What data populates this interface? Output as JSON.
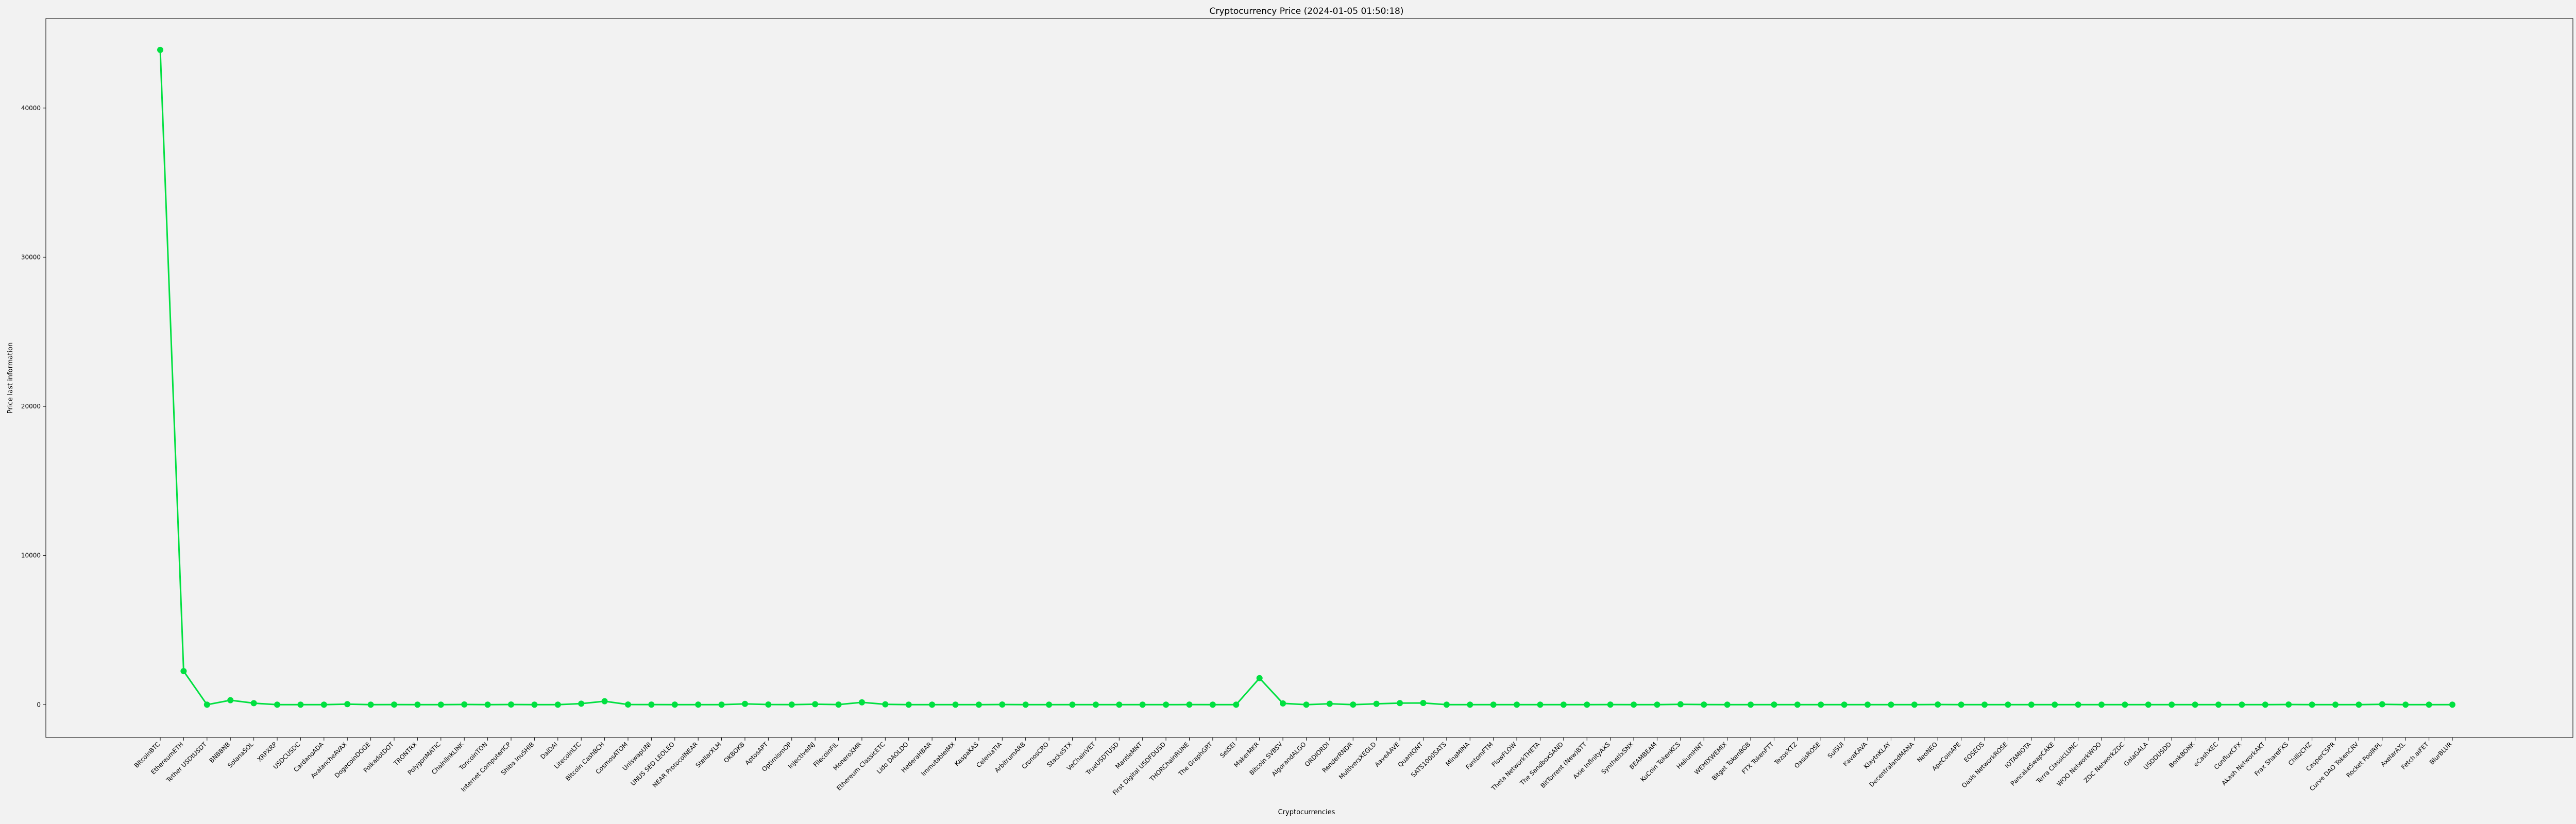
{
  "chart_data": {
    "type": "line",
    "title": "Cryptocurrency Price (2024-01-05 01:50:18)",
    "xlabel": "Cryptocurrencies",
    "ylabel": "Price last information",
    "ylim": [
      -2200,
      46000
    ],
    "yticks": [
      0,
      10000,
      20000,
      30000,
      40000
    ],
    "color": "#00e040",
    "grid": false,
    "legend": "none",
    "categories": [
      "BitcoinBTC",
      "EthereumETH",
      "Tether USDtUSDT",
      "BNBBNB",
      "SolanaSOL",
      "XRPXRP",
      "USDCUSDC",
      "CardanoADA",
      "AvalancheAVAX",
      "DogecoinDOGE",
      "PolkadotDOT",
      "TRONTRX",
      "PolygonMATIC",
      "ChainlinkLINK",
      "ToncoinTON",
      "Internet ComputerICP",
      "Shiba InuSHIB",
      "DaiDAI",
      "LitecoinLTC",
      "Bitcoin CashBCH",
      "CosmosATOM",
      "UniswapUNI",
      "UNUS SED LEOLEO",
      "NEAR ProtocolNEAR",
      "StellarXLM",
      "OKBOKB",
      "AptosAPT",
      "OptimismOP",
      "InjectiveINJ",
      "FilecoinFIL",
      "MoneroXMR",
      "Ethereum ClassicETC",
      "Lido DAOLDO",
      "HederaHBAR",
      "ImmutableIMX",
      "KaspaKAS",
      "CeleniaTIA",
      "ArbitrumARB",
      "CronosCRO",
      "StacksSTX",
      "VeChainVET",
      "TrueUSDTUSD",
      "MantleMNT",
      "First Digital USDFDUSD",
      "THORChainRUNE",
      "The GraphGRT",
      "SeiSEI",
      "MakerMKR",
      "Bitcoin SVBSV",
      "AlgorandALGO",
      "ORDIORDI",
      "RenderRNDR",
      "MultiversXEGLD",
      "AaveAAVE",
      "QuantQNT",
      "SATS1000SATS",
      "MinaMINA",
      "FantomFTM",
      "FlowFLOW",
      "Theta NetworkTHETA",
      "The SandboxSAND",
      "BitTorrent (New)BTT",
      "Axie InfinityAXS",
      "SynthetixSNX",
      "BEAMBEAM",
      "KuCoin TokenKCS",
      "HeliumHNT",
      "WEMIXWEMIX",
      "Bitget TokenBGB",
      "FTX TokenFTT",
      "TezosXTZ",
      "OasisROSE",
      "SuiSUI",
      "KavaKAVA",
      "KlaytnKLAY",
      "DecentralandMANA",
      "NeoNEO",
      "ApeCoinAPE",
      "EOSEOS",
      "Oasis NetworkROSE",
      "IOTAMIOTA",
      "PancakeSwapCAKE",
      "Terra ClassicLUNC",
      "WOO NetworkWOO",
      "ZDC NetworkZDC",
      "GalaGALA",
      "USDDUSDD",
      "BonkBONK",
      "eCashXEC",
      "ConfluxCFX",
      "Akash NetworkAKT",
      "Frax ShareFXS",
      "ChilizCHZ",
      "CasperCSPR",
      "Curve DAO TokenCRV",
      "Rocket PoolRPL",
      "AxelarAXL",
      "Fetch.aiFET",
      "BlurBLUR"
    ],
    "values": [
      43900,
      2250,
      1,
      300,
      100,
      0.6,
      1,
      0.5,
      35,
      0.08,
      7,
      0.1,
      0.8,
      14,
      2.2,
      11,
      1e-05,
      1,
      68,
      230,
      9.5,
      6,
      3.8,
      3.3,
      0.12,
      55,
      9,
      3.5,
      30,
      5.5,
      155,
      24,
      2.9,
      0.08,
      2,
      0.1,
      11,
      1.7,
      0.09,
      1.5,
      0.03,
      1,
      0.6,
      1,
      5,
      0.2,
      0.5,
      1780,
      85,
      0.18,
      60,
      4.4,
      58,
      105,
      115,
      0.0004,
      1,
      0.4,
      0.75,
      1,
      0.45,
      1e-06,
      7,
      3.2,
      0.02,
      25,
      6.5,
      2.1,
      0.6,
      3.6,
      0.9,
      0.1,
      0.7,
      0.7,
      0.2,
      0.45,
      11,
      1.6,
      0.7,
      0.1,
      0.25,
      2.2,
      0.0001,
      0.3,
      0.05,
      0.03,
      1,
      1e-05,
      4e-05,
      0.2,
      2,
      9,
      0.1,
      0.05,
      0.55,
      25,
      1.3,
      0.6,
      0.6
    ]
  }
}
